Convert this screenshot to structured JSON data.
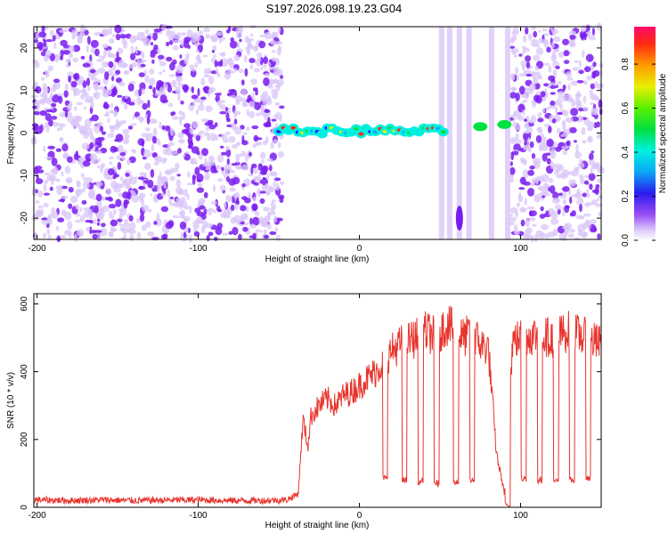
{
  "title": "S197.2026.098.19.23.G04",
  "colors": {
    "purple": "#7a1cf0",
    "light_purple": "#d9c6f8",
    "red_line": "#e8332c"
  },
  "chart_data": [
    {
      "type": "heatmap",
      "xlabel": "Height of straight line (km)",
      "ylabel": "Frequency (Hz)",
      "xlim": [
        -202,
        150
      ],
      "ylim": [
        -25,
        25
      ],
      "xticks": [
        -200,
        -100,
        0,
        100
      ],
      "yticks": [
        -20,
        -10,
        0,
        10,
        20
      ],
      "colorbar": {
        "label": "Normalized spectral amplitude",
        "range": [
          0,
          0.97
        ],
        "ticks": [
          0.0,
          0.2,
          0.4,
          0.6,
          0.8
        ]
      },
      "features": {
        "noise_regions_km": [
          [
            -202,
            -48
          ],
          [
            94,
            150
          ]
        ],
        "signal_band_km": [
          -50,
          52
        ],
        "signal_band_hz": [
          -1,
          2
        ],
        "vertical_streaks_km": [
          51,
          56,
          62,
          68,
          82,
          92
        ]
      }
    },
    {
      "type": "line",
      "xlabel": "Height of straight line (km)",
      "ylabel": "SNR (10 * v/v)",
      "xlim": [
        -202,
        150
      ],
      "ylim": [
        0,
        630
      ],
      "xticks": [
        -200,
        -100,
        0,
        100
      ],
      "yticks": [
        0,
        200,
        400,
        600
      ],
      "series": [
        {
          "x": [
            -202,
            -180,
            -160,
            -140,
            -120,
            -100,
            -80,
            -60,
            -45,
            -38,
            -35,
            -32,
            -30,
            -25,
            -20,
            -15,
            -10,
            -5,
            0,
            5,
            10,
            15,
            20,
            25,
            30,
            35,
            40,
            45,
            50,
            55,
            60,
            65,
            70,
            75,
            80,
            85,
            90,
            95,
            100,
            110,
            120,
            130,
            140,
            150
          ],
          "y": [
            22,
            20,
            22,
            20,
            21,
            22,
            20,
            20,
            22,
            40,
            260,
            180,
            270,
            300,
            320,
            300,
            330,
            340,
            360,
            380,
            400,
            430,
            460,
            480,
            490,
            500,
            520,
            510,
            520,
            540,
            510,
            500,
            520,
            480,
            470,
            160,
            40,
            490,
            500,
            510,
            500,
            520,
            500,
            480
          ]
        }
      ],
      "dropouts": [
        {
          "x": 16,
          "y": 85
        },
        {
          "x": 28,
          "y": 80
        },
        {
          "x": 38,
          "y": 75
        },
        {
          "x": 48,
          "y": 70
        },
        {
          "x": 60,
          "y": 75
        },
        {
          "x": 70,
          "y": 80
        },
        {
          "x": 92,
          "y": 5
        },
        {
          "x": 102,
          "y": 85
        },
        {
          "x": 112,
          "y": 80
        },
        {
          "x": 122,
          "y": 75
        },
        {
          "x": 132,
          "y": 80
        },
        {
          "x": 142,
          "y": 85
        }
      ]
    }
  ]
}
